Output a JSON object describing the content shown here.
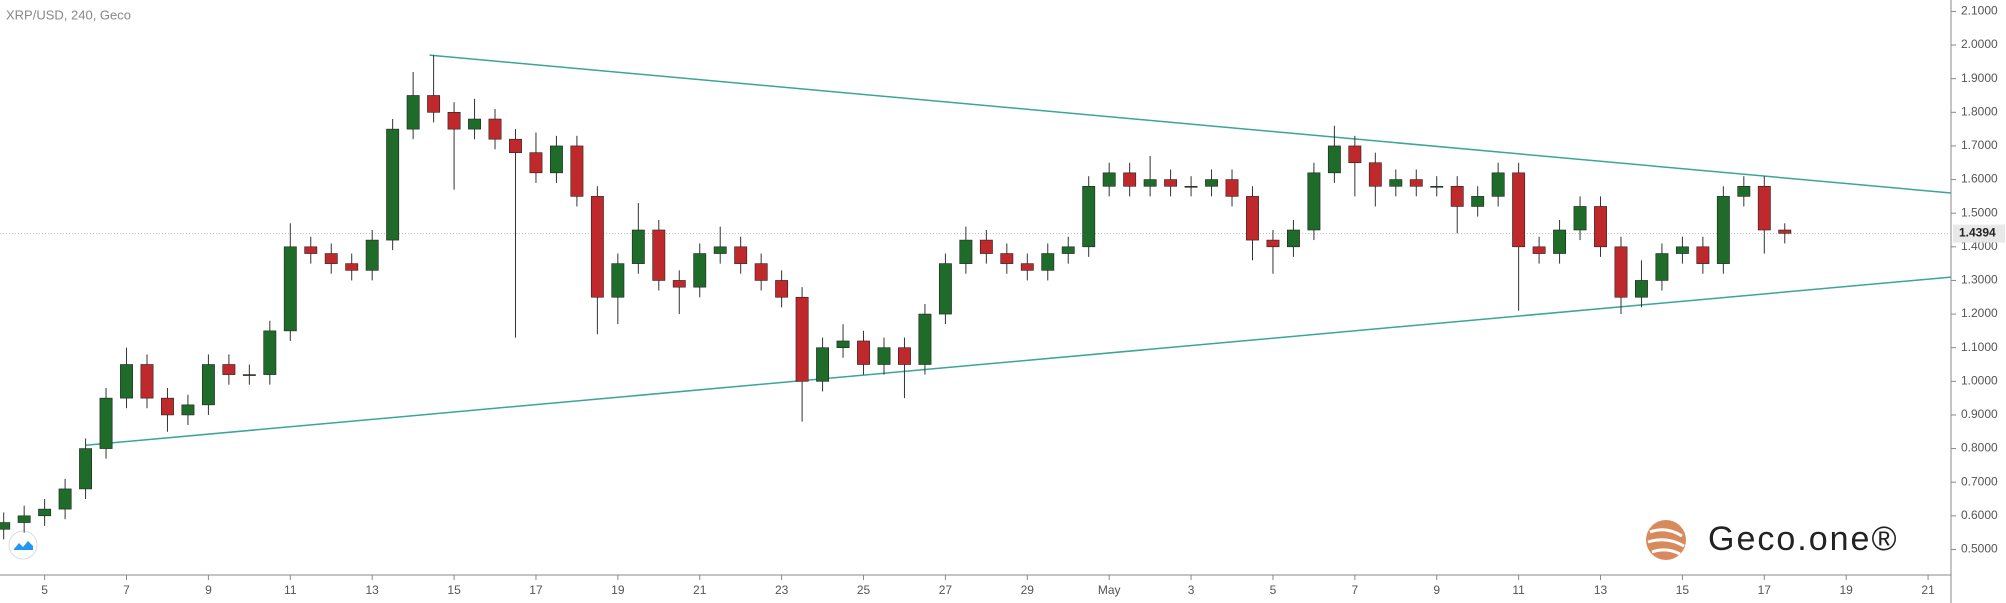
{
  "chart_data": {
    "type": "candlestick",
    "title": "XRP/USD, 240, Geco",
    "brand": "Geco.one®",
    "x": [
      -1,
      -0.5,
      0,
      0.5,
      1,
      1.5,
      2,
      2.5,
      3,
      3.5,
      4,
      4.5,
      5,
      5.5,
      6,
      6.5,
      7,
      7.5,
      8,
      8.5,
      9,
      9.5,
      10,
      10.5,
      11,
      11.5,
      12,
      12.5,
      13,
      13.5,
      14,
      14.5,
      15,
      15.5,
      16,
      16.5,
      17,
      17.5,
      18,
      18.5,
      19,
      19.5,
      20,
      20.5,
      21,
      21.5,
      22,
      22.5,
      23,
      23.5,
      24,
      24.5,
      25,
      25.5,
      26,
      26.5,
      27,
      27.5,
      28,
      28.5,
      29,
      29.5,
      30,
      30.5,
      31,
      31.5,
      32,
      32.5,
      33,
      33.5,
      34,
      34.5,
      35,
      35.5,
      36,
      36.5,
      37,
      37.5,
      38,
      38.5,
      39,
      39.5,
      40,
      40.5,
      41,
      41.5,
      42,
      42.5
    ],
    "open": [
      0.56,
      0.58,
      0.6,
      0.62,
      0.68,
      0.8,
      0.95,
      1.05,
      0.95,
      0.9,
      0.93,
      1.05,
      1.02,
      1.02,
      1.15,
      1.4,
      1.38,
      1.35,
      1.33,
      1.42,
      1.75,
      1.85,
      1.8,
      1.75,
      1.78,
      1.72,
      1.68,
      1.62,
      1.7,
      1.55,
      1.25,
      1.35,
      1.45,
      1.3,
      1.28,
      1.38,
      1.4,
      1.35,
      1.3,
      1.25,
      1.0,
      1.1,
      1.12,
      1.05,
      1.1,
      1.05,
      1.2,
      1.35,
      1.42,
      1.38,
      1.35,
      1.33,
      1.38,
      1.4,
      1.58,
      1.62,
      1.58,
      1.6,
      1.58,
      1.58,
      1.6,
      1.55,
      1.42,
      1.4,
      1.45,
      1.62,
      1.7,
      1.65,
      1.58,
      1.6,
      1.58,
      1.58,
      1.52,
      1.55,
      1.62,
      1.4,
      1.38,
      1.45,
      1.52,
      1.4,
      1.25,
      1.3,
      1.38,
      1.4,
      1.35,
      1.55,
      1.58,
      1.45
    ],
    "high": [
      0.61,
      0.63,
      0.65,
      0.71,
      0.83,
      0.98,
      1.1,
      1.08,
      0.98,
      0.96,
      1.08,
      1.08,
      1.05,
      1.18,
      1.47,
      1.43,
      1.41,
      1.38,
      1.45,
      1.78,
      1.92,
      1.97,
      1.83,
      1.84,
      1.81,
      1.75,
      1.74,
      1.73,
      1.73,
      1.58,
      1.38,
      1.53,
      1.48,
      1.33,
      1.41,
      1.46,
      1.43,
      1.38,
      1.33,
      1.28,
      1.13,
      1.17,
      1.15,
      1.13,
      1.13,
      1.23,
      1.38,
      1.46,
      1.45,
      1.41,
      1.38,
      1.41,
      1.43,
      1.61,
      1.65,
      1.65,
      1.67,
      1.63,
      1.61,
      1.63,
      1.63,
      1.58,
      1.45,
      1.48,
      1.65,
      1.76,
      1.73,
      1.68,
      1.63,
      1.63,
      1.61,
      1.61,
      1.58,
      1.65,
      1.65,
      1.43,
      1.48,
      1.55,
      1.55,
      1.43,
      1.36,
      1.41,
      1.43,
      1.43,
      1.58,
      1.61,
      1.61,
      1.47
    ],
    "low": [
      0.53,
      0.55,
      0.57,
      0.59,
      0.65,
      0.77,
      0.92,
      0.92,
      0.85,
      0.87,
      0.9,
      0.99,
      0.99,
      0.99,
      1.12,
      1.35,
      1.32,
      1.3,
      1.3,
      1.39,
      1.72,
      1.77,
      1.57,
      1.72,
      1.69,
      1.13,
      1.59,
      1.59,
      1.52,
      1.14,
      1.17,
      1.32,
      1.27,
      1.2,
      1.25,
      1.35,
      1.32,
      1.27,
      1.22,
      0.88,
      0.97,
      1.07,
      1.02,
      1.02,
      0.95,
      1.02,
      1.17,
      1.32,
      1.35,
      1.32,
      1.3,
      1.3,
      1.35,
      1.37,
      1.55,
      1.55,
      1.55,
      1.55,
      1.55,
      1.55,
      1.52,
      1.36,
      1.32,
      1.37,
      1.42,
      1.59,
      1.55,
      1.52,
      1.55,
      1.55,
      1.55,
      1.44,
      1.49,
      1.52,
      1.21,
      1.35,
      1.35,
      1.42,
      1.37,
      1.2,
      1.22,
      1.27,
      1.35,
      1.32,
      1.32,
      1.52,
      1.38,
      1.41
    ],
    "close": [
      0.58,
      0.6,
      0.62,
      0.68,
      0.8,
      0.95,
      1.05,
      0.95,
      0.9,
      0.93,
      1.05,
      1.02,
      1.02,
      1.15,
      1.4,
      1.38,
      1.35,
      1.33,
      1.42,
      1.75,
      1.85,
      1.8,
      1.75,
      1.78,
      1.72,
      1.68,
      1.62,
      1.7,
      1.55,
      1.25,
      1.35,
      1.45,
      1.3,
      1.28,
      1.38,
      1.4,
      1.35,
      1.3,
      1.25,
      1.0,
      1.1,
      1.12,
      1.05,
      1.1,
      1.05,
      1.2,
      1.35,
      1.42,
      1.38,
      1.35,
      1.33,
      1.38,
      1.4,
      1.58,
      1.62,
      1.58,
      1.6,
      1.58,
      1.58,
      1.6,
      1.55,
      1.42,
      1.4,
      1.45,
      1.62,
      1.7,
      1.65,
      1.58,
      1.6,
      1.58,
      1.58,
      1.52,
      1.55,
      1.62,
      1.4,
      1.38,
      1.45,
      1.52,
      1.4,
      1.25,
      1.3,
      1.38,
      1.4,
      1.35,
      1.55,
      1.58,
      1.45,
      1.44
    ],
    "up_color": "#1e6b2a",
    "down_color": "#c0292b",
    "last_price": {
      "value": 1.4394,
      "label": "1.4394"
    },
    "trendlines": [
      {
        "x": [
          9.4,
          46.56
        ],
        "y": [
          1.97,
          1.56
        ],
        "color": "#3aa59b"
      },
      {
        "x": [
          1,
          46.56
        ],
        "y": [
          0.81,
          1.31
        ],
        "color": "#3aa59b"
      }
    ],
    "xlim": [
      -1.09,
      46.56
    ],
    "ylim": [
      0.424,
      2.134
    ],
    "xticks": [
      {
        "value": 0,
        "label": "5"
      },
      {
        "value": 2,
        "label": "7"
      },
      {
        "value": 4,
        "label": "9"
      },
      {
        "value": 6,
        "label": "11"
      },
      {
        "value": 8,
        "label": "13"
      },
      {
        "value": 10,
        "label": "15"
      },
      {
        "value": 12,
        "label": "17"
      },
      {
        "value": 14,
        "label": "19"
      },
      {
        "value": 16,
        "label": "21"
      },
      {
        "value": 18,
        "label": "23"
      },
      {
        "value": 20,
        "label": "25"
      },
      {
        "value": 22,
        "label": "27"
      },
      {
        "value": 24,
        "label": "29"
      },
      {
        "value": 26,
        "label": "May"
      },
      {
        "value": 28,
        "label": "3"
      },
      {
        "value": 30,
        "label": "5"
      },
      {
        "value": 32,
        "label": "7"
      },
      {
        "value": 34,
        "label": "9"
      },
      {
        "value": 36,
        "label": "11"
      },
      {
        "value": 38,
        "label": "13"
      },
      {
        "value": 40,
        "label": "15"
      },
      {
        "value": 42,
        "label": "17"
      },
      {
        "value": 44,
        "label": "19"
      },
      {
        "value": 46,
        "label": "21"
      }
    ],
    "yticks": [
      {
        "value": 0.5,
        "label": "0.5000"
      },
      {
        "value": 0.6,
        "label": "0.6000"
      },
      {
        "value": 0.7,
        "label": "0.7000"
      },
      {
        "value": 0.8,
        "label": "0.8000"
      },
      {
        "value": 0.9,
        "label": "0.9000"
      },
      {
        "value": 1.0,
        "label": "1.0000"
      },
      {
        "value": 1.1,
        "label": "1.1000"
      },
      {
        "value": 1.2,
        "label": "1.2000"
      },
      {
        "value": 1.3,
        "label": "1.3000"
      },
      {
        "value": 1.4,
        "label": "1.4000"
      },
      {
        "value": 1.5,
        "label": "1.5000"
      },
      {
        "value": 1.6,
        "label": "1.6000"
      },
      {
        "value": 1.7,
        "label": "1.7000"
      },
      {
        "value": 1.8,
        "label": "1.8000"
      },
      {
        "value": 1.9,
        "label": "1.9000"
      },
      {
        "value": 2.0,
        "label": "2.0000"
      },
      {
        "value": 2.1,
        "label": "2.1000"
      }
    ]
  }
}
